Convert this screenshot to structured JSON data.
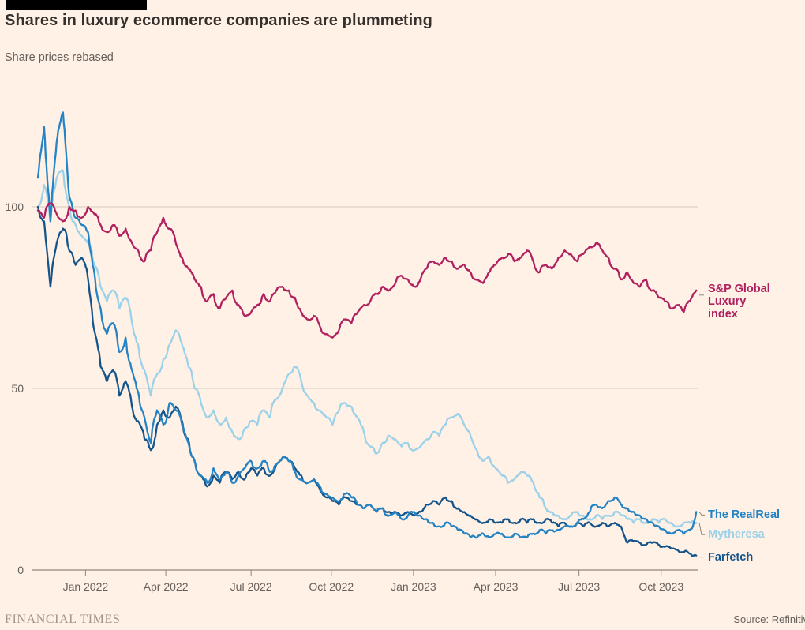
{
  "header": {
    "title": "Shares in luxury ecommerce companies are plummeting",
    "subtitle": "Share prices rebased"
  },
  "footer": {
    "brand": "FINANCIAL TIMES",
    "source": "Source: Refinitiv"
  },
  "colors": {
    "background": "#FFF1E5",
    "grid": "#D6CABD",
    "axis": "#8F8679",
    "tick_text": "#66605C",
    "title_text": "#33302E",
    "sp_luxury": "#B0215F",
    "realreal": "#2383C4",
    "mytheresa": "#9CD1EA",
    "farfetch": "#15548B"
  },
  "chart_data": {
    "type": "line",
    "title": "Shares in luxury ecommerce companies are plummeting",
    "subtitle": "Share prices rebased",
    "xlabel": "",
    "ylabel": "Share prices rebased",
    "ylim": [
      0,
      130
    ],
    "yticks": [
      0,
      50,
      100
    ],
    "grid": "horizontal",
    "legend_position": "right-end-labels",
    "x_unit": "weeks",
    "n_points": 106,
    "x_tick_positions": [
      7.6,
      20.4,
      34.0,
      46.8,
      59.9,
      73.0,
      86.3,
      99.4
    ],
    "x_tick_labels": [
      "Jan 2022",
      "Apr 2022",
      "Jul 2022",
      "Oct 2022",
      "Jan 2023",
      "Apr 2023",
      "Jul 2023",
      "Oct 2023"
    ],
    "series": [
      {
        "name": "S&P Global Luxury index",
        "label_lines": [
          "S&P Global Luxury",
          "index"
        ],
        "color": "#B0215F",
        "values": [
          99,
          97,
          101,
          98,
          96,
          100,
          99,
          97,
          100,
          98,
          95,
          93,
          95,
          92,
          94,
          90,
          88,
          85,
          88,
          93,
          97,
          94,
          90,
          86,
          83,
          80,
          78,
          74,
          76,
          72,
          75,
          77,
          73,
          70,
          71,
          73,
          76,
          74,
          77,
          78,
          77,
          75,
          71,
          69,
          70,
          67,
          65,
          64,
          66,
          69,
          68,
          71,
          73,
          74,
          76,
          78,
          77,
          79,
          81,
          80,
          78,
          80,
          83,
          85,
          84,
          86,
          85,
          83,
          84,
          82,
          80,
          79,
          82,
          84,
          86,
          87,
          85,
          86,
          88,
          85,
          82,
          84,
          83,
          86,
          88,
          87,
          85,
          87,
          89,
          90,
          88,
          86,
          83,
          80,
          82,
          79,
          78,
          80,
          77,
          75,
          74,
          72,
          73,
          71,
          74,
          77
        ]
      },
      {
        "name": "The RealReal",
        "label_lines": [
          "The RealReal"
        ],
        "color": "#2383C4",
        "values": [
          108,
          122,
          96,
          118,
          126,
          103,
          97,
          95,
          93,
          82,
          72,
          65,
          68,
          60,
          64,
          55,
          49,
          42,
          35,
          44,
          40,
          46,
          44,
          40,
          35,
          30,
          26,
          24,
          28,
          25,
          27,
          24,
          26,
          28,
          30,
          28,
          30,
          27,
          29,
          31,
          30,
          27,
          25,
          24,
          25,
          23,
          21,
          20,
          19,
          21,
          20,
          18,
          17,
          18,
          16,
          17,
          15,
          16,
          14,
          15,
          16,
          15,
          14,
          13,
          12,
          13,
          12,
          11,
          10,
          9,
          9,
          10,
          9,
          10,
          10,
          9,
          10,
          9,
          9,
          10,
          11,
          10,
          11,
          11,
          12,
          12,
          13,
          14,
          16,
          18,
          17,
          19,
          20,
          18,
          17,
          16,
          15,
          14,
          13,
          12,
          11,
          10,
          11,
          10,
          11,
          16
        ]
      },
      {
        "name": "Mytheresa",
        "label_lines": [
          "Mytheresa"
        ],
        "color": "#9CD1EA",
        "values": [
          100,
          106,
          96,
          108,
          110,
          100,
          95,
          92,
          90,
          84,
          78,
          74,
          77,
          72,
          75,
          68,
          62,
          55,
          48,
          54,
          58,
          62,
          66,
          62,
          56,
          50,
          46,
          42,
          44,
          40,
          42,
          38,
          36,
          39,
          41,
          40,
          44,
          42,
          47,
          50,
          54,
          56,
          52,
          48,
          46,
          44,
          42,
          40,
          44,
          46,
          45,
          42,
          38,
          34,
          32,
          35,
          37,
          36,
          34,
          35,
          33,
          34,
          36,
          38,
          37,
          40,
          42,
          43,
          40,
          37,
          33,
          30,
          31,
          28,
          26,
          24,
          25,
          27,
          26,
          24,
          20,
          17,
          16,
          15,
          14,
          15,
          16,
          15,
          14,
          15,
          14,
          15,
          16,
          15,
          14,
          13,
          14,
          13,
          14,
          13,
          14,
          13,
          12,
          13,
          13,
          13
        ]
      },
      {
        "name": "Farfetch",
        "label_lines": [
          "Farfetch"
        ],
        "color": "#15548B",
        "values": [
          100,
          96,
          78,
          90,
          94,
          88,
          84,
          86,
          80,
          66,
          56,
          52,
          55,
          48,
          52,
          45,
          41,
          36,
          33,
          40,
          44,
          42,
          45,
          41,
          36,
          30,
          26,
          23,
          26,
          24,
          27,
          25,
          27,
          25,
          28,
          26,
          28,
          26,
          29,
          31,
          30,
          28,
          26,
          24,
          25,
          22,
          20,
          19,
          18,
          20,
          19,
          18,
          17,
          18,
          16,
          17,
          16,
          16,
          15,
          16,
          15,
          16,
          18,
          19,
          18,
          20,
          19,
          17,
          16,
          15,
          14,
          13,
          14,
          13,
          13,
          14,
          13,
          14,
          13,
          14,
          13,
          14,
          13,
          12,
          13,
          12,
          13,
          12,
          13,
          12,
          13,
          12,
          13,
          12,
          7.5,
          8,
          7.5,
          7,
          7.5,
          7,
          6.5,
          6,
          5.5,
          5,
          4.5,
          4
        ]
      }
    ]
  }
}
